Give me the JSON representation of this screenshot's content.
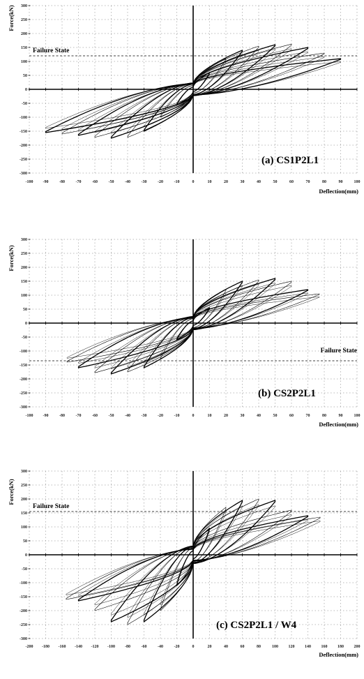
{
  "chart_data": [
    {
      "type": "line",
      "title": "(a) CS1P2L1",
      "xlabel": "Deflection(mm)",
      "ylabel": "Force(kN)",
      "xlim": [
        -100,
        100
      ],
      "ylim": [
        -300,
        300
      ],
      "xticks": [
        -100,
        -90,
        -80,
        -70,
        -60,
        -50,
        -40,
        -30,
        -20,
        -10,
        0,
        10,
        20,
        30,
        40,
        50,
        60,
        70,
        80,
        90,
        100
      ],
      "yticks": [
        -300,
        -250,
        -200,
        -150,
        -100,
        -50,
        0,
        50,
        100,
        150,
        200,
        250,
        300
      ],
      "annotation": {
        "text": "Failure State",
        "y": 120
      },
      "cycles": [
        {
          "dmax": 10,
          "fpos": 60,
          "fneg": -55
        },
        {
          "dmax": 20,
          "fpos": 110,
          "fneg": -100
        },
        {
          "dmax": 30,
          "fpos": 140,
          "fneg": -150
        },
        {
          "dmax": 40,
          "fpos": 155,
          "fneg": -172
        },
        {
          "dmax": 50,
          "fpos": 160,
          "fneg": -175
        },
        {
          "dmax": 60,
          "fpos": 162,
          "fneg": -172
        },
        {
          "dmax": 70,
          "fpos": 150,
          "fneg": -165
        },
        {
          "dmax": 80,
          "fpos": 130,
          "fneg": -160
        },
        {
          "dmax": 90,
          "fpos": 110,
          "fneg": -155
        }
      ]
    },
    {
      "type": "line",
      "title": "(b) CS2P2L1",
      "xlabel": "Deflection(mm)",
      "ylabel": "Force(kN)",
      "xlim": [
        -100,
        100
      ],
      "ylim": [
        -300,
        300
      ],
      "xticks": [
        -100,
        -90,
        -80,
        -70,
        -60,
        -50,
        -40,
        -30,
        -20,
        -10,
        0,
        10,
        20,
        30,
        40,
        50,
        60,
        70,
        80,
        90,
        100
      ],
      "yticks": [
        -300,
        -250,
        -200,
        -150,
        -100,
        -50,
        0,
        50,
        100,
        150,
        200,
        250,
        300
      ],
      "annotation": {
        "text": "Failure State",
        "y": -135
      },
      "cycles": [
        {
          "dmax": 10,
          "fpos": 55,
          "fneg": -60
        },
        {
          "dmax": 20,
          "fpos": 120,
          "fneg": -130
        },
        {
          "dmax": 30,
          "fpos": 150,
          "fneg": -160
        },
        {
          "dmax": 40,
          "fpos": 155,
          "fneg": -175
        },
        {
          "dmax": 50,
          "fpos": 160,
          "fneg": -182
        },
        {
          "dmax": 60,
          "fpos": 150,
          "fneg": -178
        },
        {
          "dmax": 70,
          "fpos": 120,
          "fneg": -160
        },
        {
          "dmax": 77,
          "fpos": 105,
          "fneg": -140
        }
      ]
    },
    {
      "type": "line",
      "title": "(c) CS2P2L1 / W4",
      "xlabel": "Deflection(mm)",
      "ylabel": "Force(kN)",
      "xlim": [
        -200,
        200
      ],
      "ylim": [
        -300,
        300
      ],
      "xticks": [
        -200,
        -180,
        -160,
        -140,
        -120,
        -100,
        -80,
        -60,
        -40,
        -20,
        0,
        20,
        40,
        60,
        80,
        100,
        120,
        140,
        160,
        180,
        200
      ],
      "yticks": [
        -300,
        -250,
        -200,
        -150,
        -100,
        -50,
        0,
        50,
        100,
        150,
        200,
        250,
        300
      ],
      "annotation": {
        "text": "Failure State",
        "y": 155
      },
      "cycles": [
        {
          "dmax": 20,
          "fpos": 95,
          "fneg": -110
        },
        {
          "dmax": 40,
          "fpos": 170,
          "fneg": -200
        },
        {
          "dmax": 60,
          "fpos": 195,
          "fneg": -240
        },
        {
          "dmax": 80,
          "fpos": 200,
          "fneg": -250
        },
        {
          "dmax": 100,
          "fpos": 195,
          "fneg": -240
        },
        {
          "dmax": 120,
          "fpos": 160,
          "fneg": -200
        },
        {
          "dmax": 140,
          "fpos": 140,
          "fneg": -165
        },
        {
          "dmax": 155,
          "fpos": 135,
          "fneg": -160
        }
      ]
    }
  ]
}
